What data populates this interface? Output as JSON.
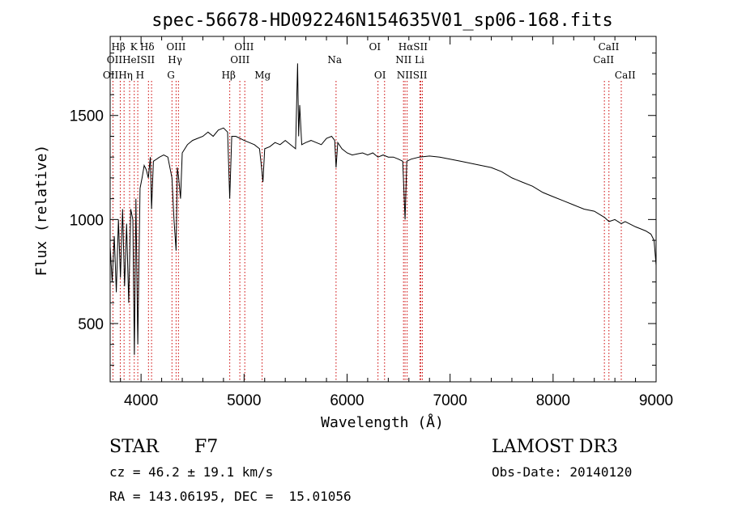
{
  "chart_data": {
    "type": "line",
    "title": "spec-56678-HD092246N154635V01_sp06-168.fits",
    "xlabel": "Wavelength (Å)",
    "ylabel": "Flux (relative)",
    "xlim": [
      3700,
      9000
    ],
    "ylim": [
      220,
      1880
    ],
    "xticks": [
      4000,
      5000,
      6000,
      7000,
      8000,
      9000
    ],
    "yticks": [
      500,
      1000,
      1500
    ],
    "grid": false,
    "line_color": "#000000",
    "marker_color": "#cc0000",
    "series": [
      {
        "name": "flux",
        "x": [
          3700,
          3720,
          3740,
          3760,
          3780,
          3800,
          3820,
          3840,
          3860,
          3880,
          3900,
          3920,
          3935,
          3950,
          3968,
          3990,
          4010,
          4030,
          4050,
          4070,
          4090,
          4102,
          4120,
          4150,
          4180,
          4220,
          4260,
          4300,
          4320,
          4340,
          4352,
          4365,
          4383,
          4400,
          4450,
          4500,
          4550,
          4600,
          4650,
          4700,
          4750,
          4800,
          4840,
          4861,
          4880,
          4920,
          4960,
          5000,
          5050,
          5100,
          5150,
          5170,
          5183,
          5200,
          5250,
          5300,
          5350,
          5400,
          5450,
          5500,
          5520,
          5530,
          5540,
          5560,
          5600,
          5650,
          5700,
          5750,
          5800,
          5850,
          5880,
          5893,
          5910,
          5950,
          6000,
          6050,
          6100,
          6150,
          6200,
          6250,
          6300,
          6350,
          6400,
          6450,
          6500,
          6540,
          6563,
          6580,
          6620,
          6700,
          6800,
          6900,
          7000,
          7100,
          7200,
          7300,
          7400,
          7500,
          7600,
          7700,
          7800,
          7900,
          8000,
          8100,
          8200,
          8300,
          8400,
          8500,
          8542,
          8600,
          8662,
          8700,
          8800,
          8850,
          8900,
          8950,
          8980,
          9000
        ],
        "y": [
          870,
          700,
          920,
          650,
          1000,
          720,
          1050,
          680,
          980,
          600,
          1050,
          1000,
          350,
          1100,
          400,
          1150,
          1200,
          1260,
          1240,
          1200,
          1300,
          1050,
          1280,
          1290,
          1300,
          1310,
          1300,
          1200,
          1000,
          850,
          1250,
          1200,
          1100,
          1320,
          1360,
          1380,
          1390,
          1400,
          1420,
          1400,
          1430,
          1440,
          1420,
          1100,
          1400,
          1400,
          1390,
          1380,
          1370,
          1360,
          1340,
          1250,
          1180,
          1340,
          1350,
          1370,
          1360,
          1380,
          1360,
          1340,
          1750,
          1400,
          1550,
          1360,
          1370,
          1380,
          1370,
          1360,
          1390,
          1400,
          1380,
          1250,
          1370,
          1340,
          1320,
          1310,
          1315,
          1320,
          1310,
          1320,
          1300,
          1310,
          1300,
          1300,
          1290,
          1280,
          1000,
          1280,
          1290,
          1300,
          1305,
          1300,
          1290,
          1280,
          1270,
          1260,
          1250,
          1230,
          1200,
          1180,
          1160,
          1130,
          1110,
          1090,
          1070,
          1050,
          1040,
          1010,
          990,
          1000,
          980,
          990,
          965,
          955,
          945,
          930,
          900,
          780
        ]
      }
    ],
    "line_markers": [
      {
        "wl": 3727,
        "top": "OII",
        "bottom": "OII"
      },
      {
        "wl": 3798,
        "top": "Hη",
        "bottom": ""
      },
      {
        "wl": 3835,
        "top": "Hη",
        "bottom": ""
      },
      {
        "wl": 3889,
        "top": "HeI",
        "bottom": ""
      },
      {
        "wl": 3934,
        "top": "K",
        "bottom": ""
      },
      {
        "wl": 3968,
        "top": "H",
        "bottom": ""
      },
      {
        "wl": 4072,
        "top": "SII",
        "bottom": ""
      },
      {
        "wl": 4102,
        "top": "Hδ",
        "bottom": ""
      },
      {
        "wl": 4300,
        "top": "G",
        "bottom": ""
      },
      {
        "wl": 4340,
        "top": "Hγ",
        "bottom": ""
      },
      {
        "wl": 4363,
        "top": "OIII",
        "bottom": ""
      },
      {
        "wl": 4861,
        "top": "Hβ",
        "bottom": ""
      },
      {
        "wl": 4959,
        "top": "OIII",
        "bottom": ""
      },
      {
        "wl": 5007,
        "top": "OIII",
        "bottom": ""
      },
      {
        "wl": 5175,
        "top": "Mg",
        "bottom": ""
      },
      {
        "wl": 5893,
        "top": "Na",
        "bottom": ""
      },
      {
        "wl": 6300,
        "top": "OI",
        "bottom": ""
      },
      {
        "wl": 6364,
        "top": "OI",
        "bottom": ""
      },
      {
        "wl": 6548,
        "top": "NII",
        "bottom": ""
      },
      {
        "wl": 6563,
        "top": "Hα",
        "bottom": ""
      },
      {
        "wl": 6583,
        "top": "NII",
        "bottom": ""
      },
      {
        "wl": 6707,
        "top": "Li",
        "bottom": ""
      },
      {
        "wl": 6716,
        "top": "SII",
        "bottom": ""
      },
      {
        "wl": 6731,
        "top": "SII",
        "bottom": ""
      },
      {
        "wl": 8498,
        "top": "CaII",
        "bottom": ""
      },
      {
        "wl": 8542,
        "top": "CaII",
        "bottom": ""
      },
      {
        "wl": 8662,
        "top": "CaII",
        "bottom": ""
      }
    ],
    "line_labels": [
      {
        "text": "Hβ",
        "wl": 3780,
        "row": 1
      },
      {
        "text": "K",
        "wl": 3930,
        "row": 1
      },
      {
        "text": "Hδ",
        "wl": 4060,
        "row": 1
      },
      {
        "text": "OIII",
        "wl": 4340,
        "row": 1
      },
      {
        "text": "OIII",
        "wl": 5000,
        "row": 1
      },
      {
        "text": "OI",
        "wl": 6270,
        "row": 1
      },
      {
        "text": "HαSII",
        "wl": 6640,
        "row": 1
      },
      {
        "text": "CaII",
        "wl": 8540,
        "row": 1
      },
      {
        "text": "OIIHeISII",
        "wl": 3900,
        "row": 2
      },
      {
        "text": "Hγ",
        "wl": 4330,
        "row": 2
      },
      {
        "text": "OIII",
        "wl": 4960,
        "row": 2
      },
      {
        "text": "Na",
        "wl": 5880,
        "row": 2
      },
      {
        "text": "NII Li",
        "wl": 6610,
        "row": 2
      },
      {
        "text": "CaII",
        "wl": 8490,
        "row": 2
      },
      {
        "text": "OIIHη H",
        "wl": 3830,
        "row": 3
      },
      {
        "text": "G",
        "wl": 4290,
        "row": 3
      },
      {
        "text": "Hβ",
        "wl": 4850,
        "row": 3
      },
      {
        "text": "Mg",
        "wl": 5180,
        "row": 3
      },
      {
        "text": "OI",
        "wl": 6320,
        "row": 3
      },
      {
        "text": "NIISII",
        "wl": 6630,
        "row": 3
      },
      {
        "text": "CaII",
        "wl": 8700,
        "row": 3
      }
    ]
  },
  "footer": {
    "object_type": "STAR",
    "subclass": "F7",
    "survey": "LAMOST DR3",
    "cz": "cz = 46.2 ± 19.1 km/s",
    "obs_date": "Obs-Date: 20140120",
    "coords": "RA = 143.06195, DEC =  15.01056"
  }
}
